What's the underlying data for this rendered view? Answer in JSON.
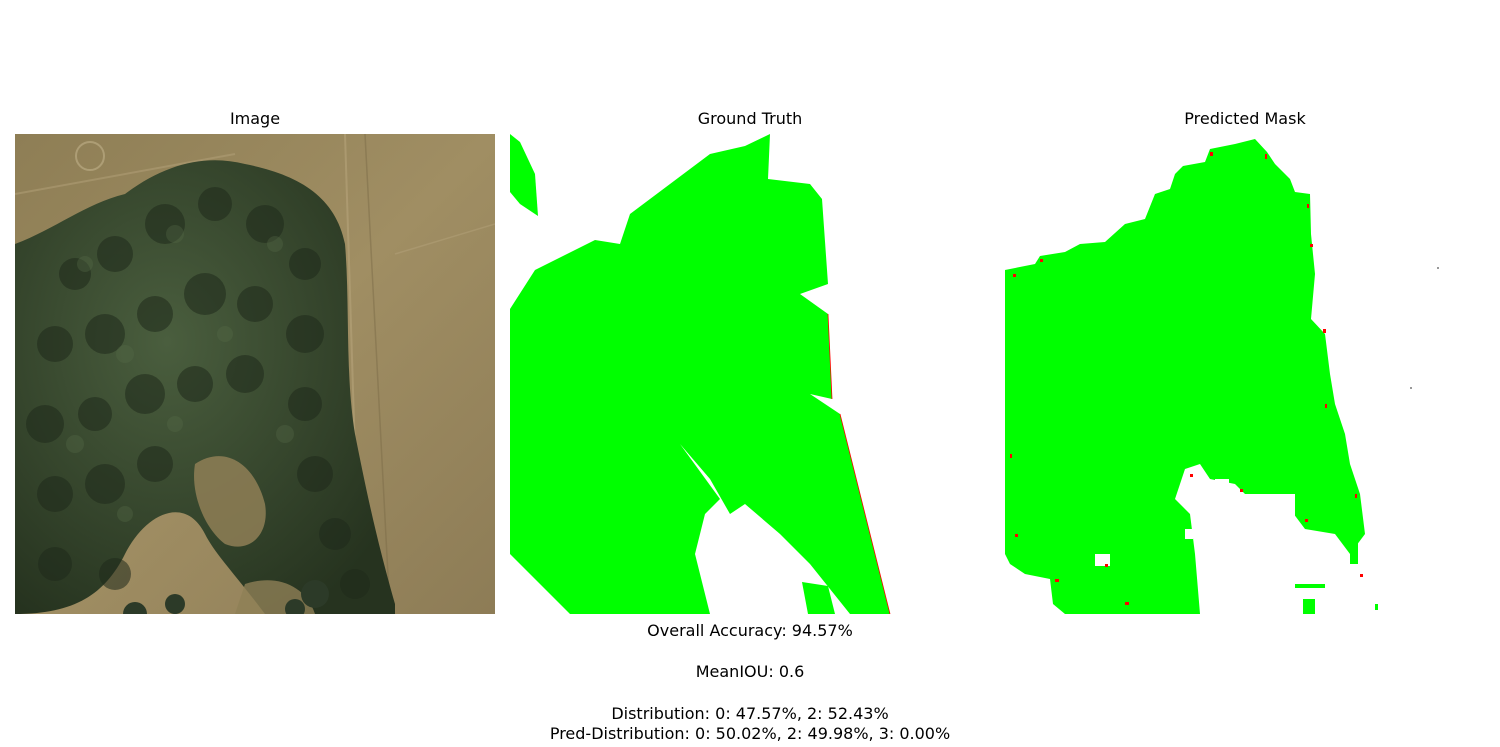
{
  "panels": {
    "image_title": "Image",
    "ground_truth_title": "Ground Truth",
    "predicted_title": "Predicted Mask"
  },
  "metrics": {
    "overall_accuracy": "Overall Accuracy: 94.57%",
    "mean_iou": "MeanIOU: 0.6",
    "distribution": "Distribution: 0: 47.57%, 2: 52.43%",
    "pred_distribution": "Pred-Distribution: 0: 50.02%, 2: 49.98%, 3: 0.00%"
  },
  "colors": {
    "mask_green": "#00ff00",
    "mask_error_red": "#ff0000",
    "background": "#ffffff",
    "field_tan": "#9c8a5f",
    "forest_dark": "#2f3d2c"
  }
}
